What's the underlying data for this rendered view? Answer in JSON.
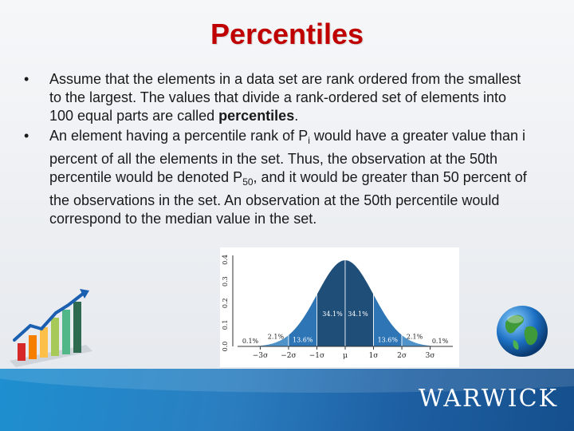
{
  "title": "Percentiles",
  "bullet_symbol": "•",
  "bullets": [
    {
      "text_before": "Assume that the elements in a data set are rank ordered from the smallest to the largest. The values that divide a rank-ordered set of elements into 100 equal parts are called ",
      "bold": "percentiles",
      "text_after": "."
    },
    {
      "p1": "An element having a percentile rank of P",
      "sub1": "i",
      "p2": " would have a greater value than i percent of all the elements in the set. Thus, the observation at the 50th percentile would be denoted P",
      "sub2": "50",
      "p3": ", and it would be greater than 50 percent of the observations in the set. An observation at the 50th percentile would correspond to the median value in the set."
    }
  ],
  "chart_data": {
    "type": "area",
    "x_ticks": [
      "−3σ",
      "−2σ",
      "−1σ",
      "μ",
      "1σ",
      "2σ",
      "3σ"
    ],
    "y_ticks": [
      "0.0",
      "0.1",
      "0.2",
      "0.3",
      "0.4"
    ],
    "ylim": [
      0,
      0.42
    ],
    "xlim": [
      -3.8,
      3.8
    ],
    "regions": [
      {
        "from": -4,
        "to": -3,
        "label": "0.1%"
      },
      {
        "from": -3,
        "to": -2,
        "label": "2.1%"
      },
      {
        "from": -2,
        "to": -1,
        "label": "13.6%"
      },
      {
        "from": -1,
        "to": 0,
        "label": "34.1%"
      },
      {
        "from": 0,
        "to": 1,
        "label": "34.1%"
      },
      {
        "from": 1,
        "to": 2,
        "label": "13.6%"
      },
      {
        "from": 2,
        "to": 3,
        "label": "2.1%"
      },
      {
        "from": 3,
        "to": 4,
        "label": "0.1%"
      }
    ],
    "colors": [
      "#1f4e79",
      "#2e75b6",
      "#4f93c9",
      "#7fb2dc"
    ]
  },
  "logo": "WARWICK"
}
